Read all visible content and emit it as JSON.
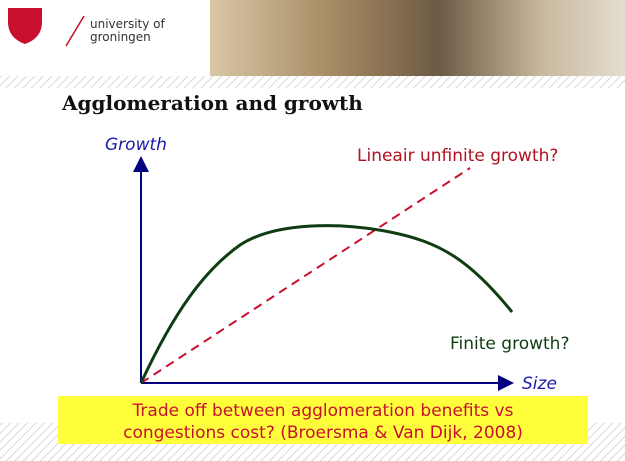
{
  "header": {
    "logo_line1": "university of",
    "logo_line2": "groningen"
  },
  "title": "Agglomeration and growth",
  "diagram": {
    "y_axis_label": "Growth",
    "x_axis_label": "Size",
    "linear_label": "Lineair unfinite growth?",
    "finite_label": "Finite growth?"
  },
  "note": {
    "line1": "Trade off between agglomeration benefits vs",
    "line2": "congestions cost? (Broersma & Van Dijk, 2008)"
  }
}
